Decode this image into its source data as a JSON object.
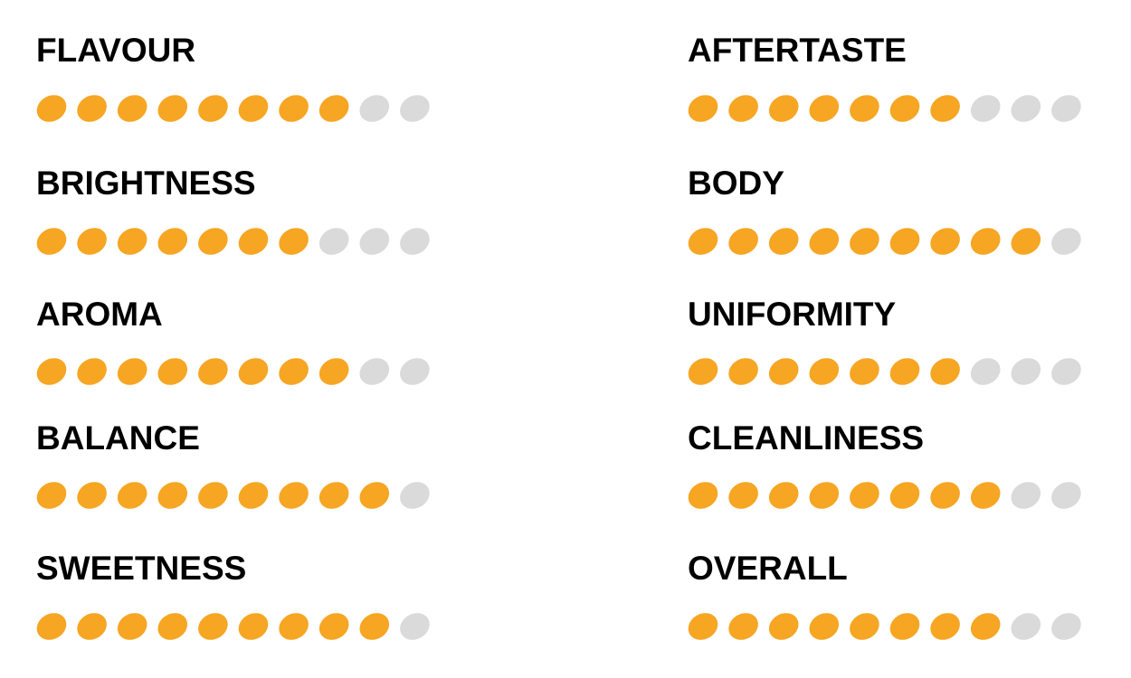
{
  "scale_max": 10,
  "filled_color": "#f6a623",
  "empty_color": "#dadada",
  "ratings": [
    {
      "label": "FLAVOUR",
      "score": 8
    },
    {
      "label": "BRIGHTNESS",
      "score": 7
    },
    {
      "label": "AROMA",
      "score": 8
    },
    {
      "label": "BALANCE",
      "score": 9
    },
    {
      "label": "SWEETNESS",
      "score": 9
    },
    {
      "label": "AFTERTASTE",
      "score": 7
    },
    {
      "label": "BODY",
      "score": 9
    },
    {
      "label": "UNIFORMITY",
      "score": 7
    },
    {
      "label": "CLEANLINESS",
      "score": 8
    },
    {
      "label": "OVERALL",
      "score": 8
    }
  ]
}
